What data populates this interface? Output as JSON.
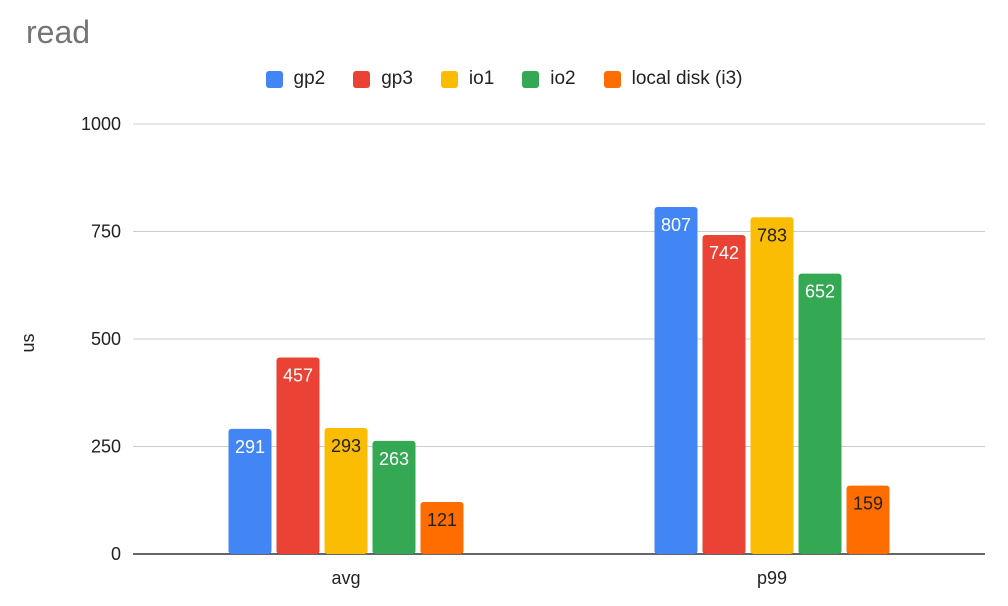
{
  "chart_data": {
    "type": "bar",
    "title": "read",
    "ylabel": "us",
    "xlabel": "",
    "categories": [
      "avg",
      "p99"
    ],
    "series": [
      {
        "name": "gp2",
        "color": "#4285F4",
        "label_color": "#ffffff",
        "values": [
          291,
          807
        ]
      },
      {
        "name": "gp3",
        "color": "#EA4335",
        "label_color": "#ffffff",
        "values": [
          457,
          742
        ]
      },
      {
        "name": "io1",
        "color": "#FBBC04",
        "label_color": "#222222",
        "values": [
          293,
          783
        ]
      },
      {
        "name": "io2",
        "color": "#34A853",
        "label_color": "#ffffff",
        "values": [
          263,
          652
        ]
      },
      {
        "name": "local disk (i3)",
        "color": "#FF6D01",
        "label_color": "#222222",
        "values": [
          121,
          159
        ]
      }
    ],
    "ylim": [
      0,
      1000
    ],
    "yticks": [
      0,
      250,
      500,
      750,
      1000
    ],
    "grid": true,
    "legend_position": "top"
  }
}
